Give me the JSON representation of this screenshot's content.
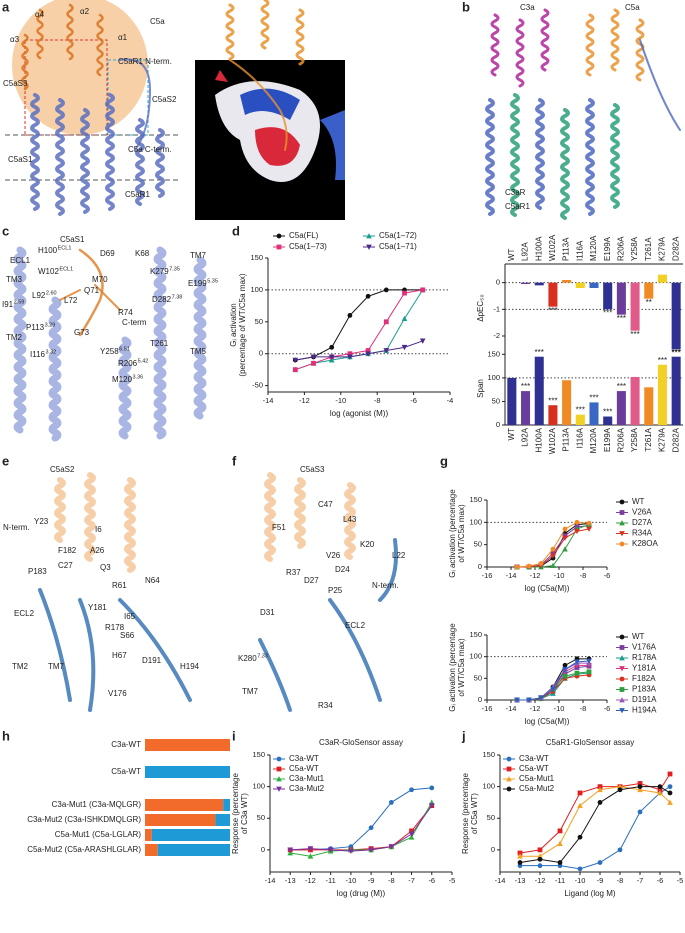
{
  "panel_labels": [
    "a",
    "b",
    "c",
    "d",
    "e",
    "f",
    "g",
    "h",
    "i",
    "j"
  ],
  "structure_labels": {
    "a": [
      "α4",
      "α2",
      "α1",
      "α3",
      "C5a",
      "C5aR1 N-term.",
      "C5aS3",
      "C5aS2",
      "C5aS1",
      "C5a C-term.",
      "C5aR1"
    ],
    "b": [
      "C3a",
      "C5a",
      "C3aR",
      "C5aR1"
    ],
    "c": [
      "C5aS1",
      "ECL1",
      {
        "text": "H100",
        "sup": "ECL1"
      },
      "TM3",
      {
        "text": "W102",
        "sup": "ECL1"
      },
      {
        "text": "I91",
        "sup": "2.59"
      },
      {
        "text": "L92",
        "sup": "2.60"
      },
      "TM2",
      {
        "text": "P113",
        "sup": "3.29"
      },
      {
        "text": "I116",
        "sup": "3.32"
      },
      {
        "text": "M120",
        "sup": "3.36"
      },
      {
        "text": "Y258",
        "sup": "6.51"
      },
      {
        "text": "R206",
        "sup": "5.42"
      },
      "T261",
      {
        "text": "K279",
        "sup": "7.35"
      },
      {
        "text": "D282",
        "sup": "7.38"
      },
      {
        "text": "E199",
        "sup": "5.35"
      },
      "TM7",
      "TM5",
      "D69",
      "K68",
      "M70",
      "Q71",
      "L72",
      "R74",
      "C-term",
      "G73"
    ],
    "e": [
      "C5aS2",
      "N-term.",
      "Y23",
      "I6",
      "F182",
      "A26",
      "C27",
      "Q3",
      "P183",
      "R61",
      "N64",
      "Y181",
      "ECL2",
      "R178",
      "I65",
      "S66",
      "TM2",
      "TM7",
      "H67",
      "D191",
      "H194",
      "V176"
    ],
    "f": [
      "C5aS3",
      "C47",
      "L43",
      "F51",
      "K20",
      "V26",
      "L22",
      "R37",
      "D27",
      "D24",
      "P25",
      "N-term.",
      "D31",
      "ECL2",
      {
        "text": "K280",
        "sup": "7.33"
      },
      "TM7",
      "R34"
    ]
  },
  "chart_data": [
    {
      "type": "line",
      "xlabel": "log (agonist (M))",
      "ylabel": [
        "Gᵢ activation",
        "(percentage of WT/C5a max)"
      ],
      "x": [
        -12.5,
        -11.5,
        -10.5,
        -9.5,
        -8.5,
        -7.5,
        -6.5,
        -5.5
      ],
      "xlim": [
        -14,
        -4
      ],
      "xticks": [
        -14,
        -12,
        -10,
        -8,
        -6,
        -4
      ],
      "ylim": [
        -60,
        150
      ],
      "yticks": [
        -50,
        0,
        50,
        100,
        150
      ],
      "reference_lines": [
        0,
        100
      ],
      "series": [
        {
          "name": "C5a(FL)",
          "color": "#111111",
          "marker": "circle",
          "values": [
            -10,
            -5,
            10,
            60,
            90,
            100,
            100,
            100
          ]
        },
        {
          "name": "C5a(1–72)",
          "color": "#1a9e8f",
          "marker": "triangle",
          "values": [
            -25,
            -15,
            -10,
            -5,
            0,
            5,
            55,
            100
          ]
        },
        {
          "name": "C5a(1–73)",
          "color": "#e0307a",
          "marker": "square",
          "values": [
            -25,
            -15,
            -5,
            0,
            5,
            50,
            95,
            100
          ]
        },
        {
          "name": "C5a(1–71)",
          "color": "#4b2a8a",
          "marker": "triangle-down",
          "values": [
            -10,
            -5,
            -5,
            -5,
            0,
            5,
            10,
            20
          ]
        }
      ]
    },
    {
      "type": "bar",
      "ylabel": [
        "ΔpEC₅₀"
      ],
      "xaxis_position": "top",
      "categories": [
        "WT",
        "L92A",
        "H100A",
        "W102A",
        "P113A",
        "I116A",
        "M120A",
        "E199A",
        "R206A",
        "Y258A",
        "T261A",
        "K279A",
        "D282A"
      ],
      "values": [
        0,
        -0.05,
        -0.1,
        -0.9,
        0.1,
        -0.2,
        -0.2,
        -1.0,
        -1.2,
        -1.8,
        -0.6,
        0.3,
        -2.5
      ],
      "colors": [
        "#2e3192",
        "#6a3d9a",
        "#2e3192",
        "#d7301f",
        "#f08a24",
        "#f2d024",
        "#3a66c4",
        "#2e3192",
        "#6a3d9a",
        "#e05a8a",
        "#f08a24",
        "#f2d024",
        "#2e3192"
      ],
      "significance": [
        null,
        null,
        null,
        "***",
        null,
        null,
        null,
        "***",
        "***",
        "***",
        "**",
        null,
        "***"
      ],
      "ylim": [
        -2.6,
        0.7
      ],
      "yticks": [
        0,
        -1,
        -2
      ],
      "reference_lines": [
        0,
        -1
      ]
    },
    {
      "type": "bar",
      "ylabel": [
        "Span"
      ],
      "xaxis_position": "bottom",
      "categories": [
        "WT",
        "L92A",
        "H100A",
        "W102A",
        "P113A",
        "I116A",
        "M120A",
        "E199A",
        "R206A",
        "Y258A",
        "T261A",
        "K279A",
        "D282A"
      ],
      "values": [
        100,
        72,
        145,
        42,
        95,
        22,
        48,
        18,
        72,
        102,
        80,
        128,
        145
      ],
      "colors": [
        "#2e3192",
        "#6a3d9a",
        "#2e3192",
        "#d7301f",
        "#f08a24",
        "#f2d024",
        "#3a66c4",
        "#2e3192",
        "#6a3d9a",
        "#e05a8a",
        "#f08a24",
        "#f2d024",
        "#2e3192"
      ],
      "significance": [
        null,
        "***",
        "***",
        "***",
        null,
        "***",
        "***",
        "***",
        "***",
        null,
        null,
        "***",
        "***"
      ],
      "ylim": [
        0,
        155
      ],
      "yticks": [
        0,
        50,
        100,
        150
      ],
      "reference_lines": [
        100
      ]
    },
    {
      "type": "line",
      "xlabel": "log (C5a(M))",
      "ylabel": [
        "Gᵢ activation (percentage",
        "of WT/C5a max)"
      ],
      "x": [
        -13.5,
        -12.5,
        -11.5,
        -10.5,
        -9.5,
        -8.5,
        -7.5
      ],
      "xlim": [
        -16,
        -6
      ],
      "xticks": [
        -16,
        -14,
        -12,
        -10,
        -8,
        -6
      ],
      "ylim": [
        0,
        150
      ],
      "yticks": [
        0,
        50,
        100,
        150
      ],
      "reference_lines": [
        100
      ],
      "series": [
        {
          "name": "WT",
          "color": "#111111",
          "marker": "circle",
          "values": [
            0,
            0,
            2,
            20,
            75,
            95,
            97
          ]
        },
        {
          "name": "V26A",
          "color": "#7b3fa0",
          "marker": "square",
          "values": [
            0,
            0,
            5,
            30,
            70,
            90,
            92
          ]
        },
        {
          "name": "D27A",
          "color": "#2e9e3e",
          "marker": "triangle",
          "values": [
            0,
            0,
            0,
            3,
            40,
            85,
            95
          ]
        },
        {
          "name": "R34A",
          "color": "#d7301f",
          "marker": "triangle-down",
          "values": [
            0,
            0,
            3,
            25,
            65,
            80,
            85
          ]
        },
        {
          "name": "K28OA",
          "color": "#f08a24",
          "marker": "circle",
          "values": [
            0,
            2,
            8,
            40,
            85,
            100,
            98
          ]
        }
      ]
    },
    {
      "type": "line",
      "xlabel": "log (C5a(M))",
      "ylabel": [
        "Gᵢ activation (percentage",
        "of WT/C5a max)"
      ],
      "x": [
        -13.5,
        -12.5,
        -11.5,
        -10.5,
        -9.5,
        -8.5,
        -7.5
      ],
      "xlim": [
        -16,
        -6
      ],
      "xticks": [
        -16,
        -14,
        -12,
        -10,
        -8,
        -6
      ],
      "ylim": [
        0,
        150
      ],
      "yticks": [
        0,
        50,
        100,
        150
      ],
      "reference_lines": [
        100
      ],
      "series": [
        {
          "name": "WT",
          "color": "#111111",
          "marker": "circle",
          "values": [
            0,
            0,
            5,
            30,
            80,
            95,
            95
          ]
        },
        {
          "name": "V176A",
          "color": "#7b3fa0",
          "marker": "square",
          "values": [
            0,
            0,
            5,
            20,
            60,
            75,
            78
          ]
        },
        {
          "name": "R178A",
          "color": "#1a9e8f",
          "marker": "triangle",
          "values": [
            0,
            0,
            3,
            15,
            50,
            60,
            62
          ]
        },
        {
          "name": "Y181A",
          "color": "#e0307a",
          "marker": "triangle-down",
          "values": [
            0,
            0,
            5,
            25,
            65,
            80,
            80
          ]
        },
        {
          "name": "F182A",
          "color": "#d7301f",
          "marker": "circle",
          "values": [
            0,
            0,
            3,
            20,
            50,
            55,
            58
          ]
        },
        {
          "name": "P183A",
          "color": "#2e9e3e",
          "marker": "square",
          "values": [
            0,
            0,
            4,
            25,
            55,
            62,
            65
          ]
        },
        {
          "name": "D191A",
          "color": "#9b59b6",
          "marker": "triangle",
          "values": [
            0,
            0,
            5,
            30,
            70,
            85,
            85
          ]
        },
        {
          "name": "H194A",
          "color": "#2e5fc0",
          "marker": "triangle-down",
          "values": [
            0,
            0,
            5,
            25,
            70,
            88,
            90
          ]
        }
      ]
    },
    {
      "type": "bar",
      "orientation": "horizontal",
      "stacked": true,
      "categories": [
        "C3a-WT",
        "C5a-WT",
        "C3a-Mut1 (C3a-MQLGR)",
        "C3a-Mut2 (C3a-ISHKDMQLGR)",
        "C5a-Mut1 (C5a-LGLAR)",
        "C5a-Mut2 (C5a-ARASHLGLAR)"
      ],
      "xlim": [
        0,
        100
      ],
      "series": [
        {
          "color": "#f26b2a",
          "values": [
            100,
            0,
            92,
            83,
            8,
            15
          ]
        },
        {
          "color": "#1e9bd7",
          "values": [
            0,
            100,
            8,
            17,
            92,
            85
          ]
        }
      ]
    },
    {
      "type": "line",
      "title": "C3aR-GloSensor assay",
      "xlabel": "log (drug (M))",
      "ylabel": [
        "Response (percentage",
        "of C3a WT)"
      ],
      "x": [
        -13,
        -12,
        -11,
        -10,
        -9,
        -8,
        -7,
        -6
      ],
      "xlim": [
        -14,
        -5
      ],
      "xticks": [
        -14,
        -13,
        -12,
        -11,
        -10,
        -9,
        -8,
        -7,
        -6,
        -5
      ],
      "ylim": [
        -35,
        150
      ],
      "yticks": [
        0,
        50,
        100,
        150
      ],
      "series": [
        {
          "name": "C3a-WT",
          "color": "#2a6fc0",
          "marker": "circle",
          "values": [
            0,
            0,
            2,
            5,
            35,
            75,
            95,
            98
          ]
        },
        {
          "name": "C5a-WT",
          "color": "#e02020",
          "marker": "square",
          "values": [
            0,
            0,
            0,
            0,
            2,
            5,
            30,
            70
          ]
        },
        {
          "name": "C3a-Mut1",
          "color": "#2eae3e",
          "marker": "triangle",
          "values": [
            -5,
            -10,
            -2,
            0,
            0,
            5,
            20,
            75
          ]
        },
        {
          "name": "C3a-Mut2",
          "color": "#7b2fa0",
          "marker": "triangle-down",
          "values": [
            0,
            2,
            0,
            -2,
            0,
            5,
            25,
            70
          ]
        }
      ]
    },
    {
      "type": "line",
      "title": "C5aR1-GloSensor assay",
      "xlabel": "Ligand (log M)",
      "ylabel": [
        "Response (percentage",
        "of C5a WT)"
      ],
      "x": [
        -13,
        -12,
        -11,
        -10,
        -9,
        -8,
        -7,
        -6,
        -5.5
      ],
      "xlim": [
        -14,
        -5
      ],
      "xticks": [
        -14,
        -13,
        -12,
        -11,
        -10,
        -9,
        -8,
        -7,
        -6,
        -5
      ],
      "ylim": [
        -35,
        150
      ],
      "yticks": [
        0,
        50,
        100,
        150
      ],
      "series": [
        {
          "name": "C3a-WT",
          "color": "#2a6fc0",
          "marker": "circle",
          "values": [
            -25,
            -25,
            -25,
            -30,
            -20,
            0,
            60,
            90,
            100
          ]
        },
        {
          "name": "C5a-WT",
          "color": "#e02020",
          "marker": "square",
          "values": [
            -5,
            0,
            30,
            90,
            100,
            100,
            105,
            95,
            120
          ]
        },
        {
          "name": "C5a-Mut1",
          "color": "#f5a020",
          "marker": "triangle",
          "values": [
            -10,
            -10,
            10,
            70,
            95,
            100,
            95,
            90,
            75
          ]
        },
        {
          "name": "C5a-Mut2",
          "color": "#111111",
          "marker": "circle",
          "values": [
            -20,
            -15,
            -20,
            20,
            75,
            95,
            100,
            100,
            90
          ]
        }
      ]
    }
  ]
}
